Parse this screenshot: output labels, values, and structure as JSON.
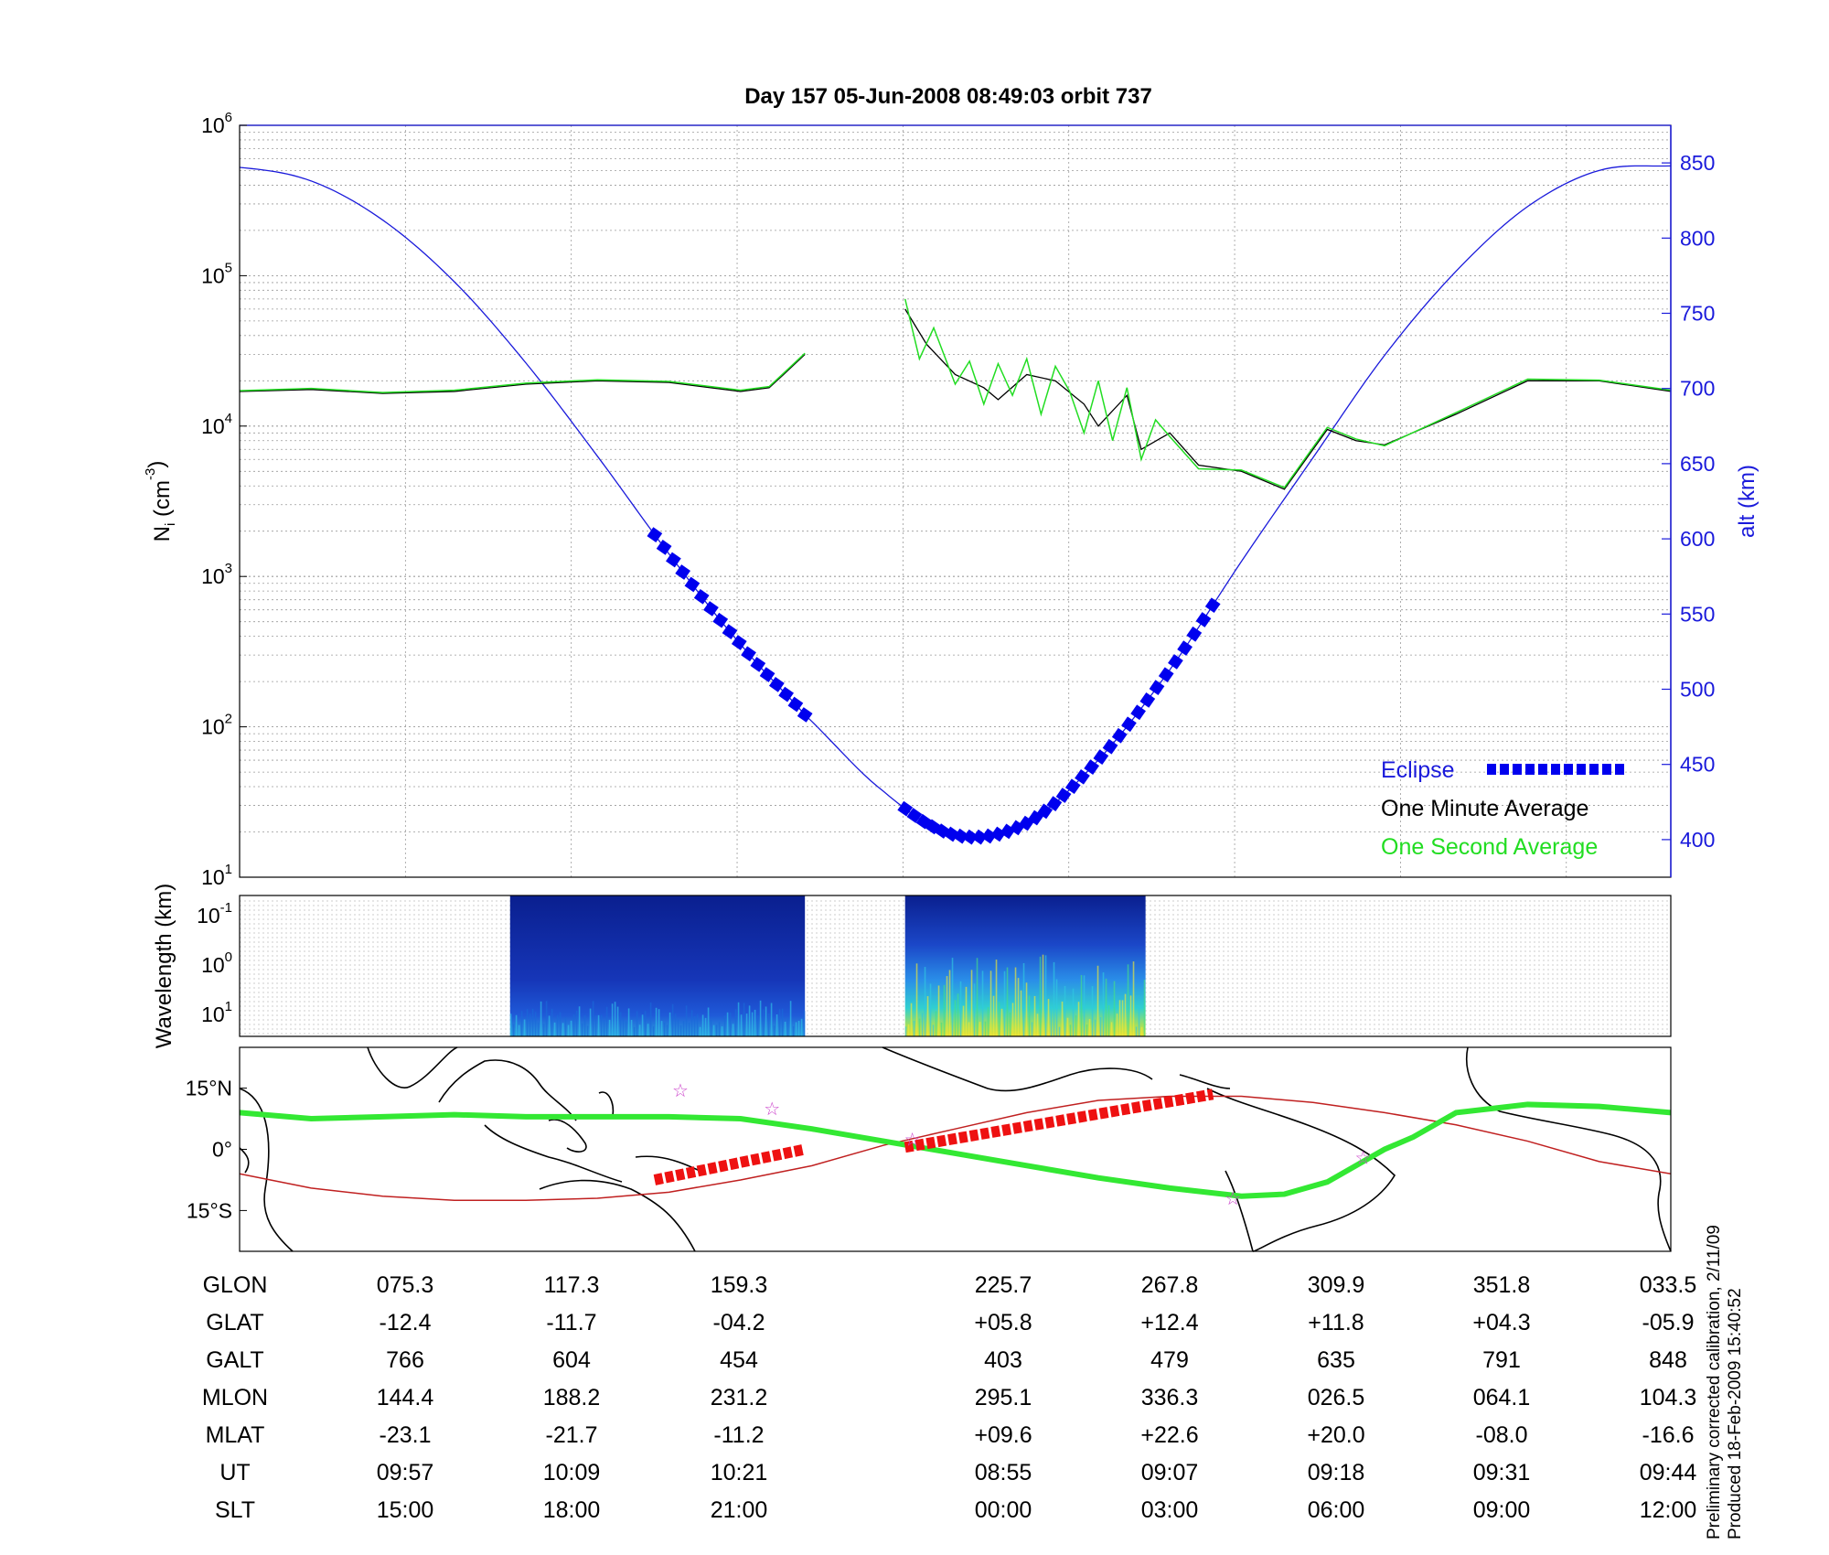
{
  "title": "Day 157  05-Jun-2008 08:49:03   orbit 737",
  "colors": {
    "altitude": "#1a1adb",
    "one_minute": "#000000",
    "one_second": "#22dd22",
    "eclipse": "#0000ee",
    "track": "#33e833",
    "magnetic_equator": "#c02020",
    "eclipse_track": "#ee1111",
    "stars": "#cc44cc"
  },
  "chart_data": [
    {
      "type": "line",
      "panel": "density",
      "ylabel_left": "N_i (cm^-3)",
      "ylabel_right": "alt (km)",
      "ylim_left": [
        10,
        1000000
      ],
      "yscale_left": "log",
      "ylim_right": [
        375,
        875
      ],
      "left_ticks": [
        {
          "base": "10",
          "exp": "1"
        },
        {
          "base": "10",
          "exp": "2"
        },
        {
          "base": "10",
          "exp": "3"
        },
        {
          "base": "10",
          "exp": "4"
        },
        {
          "base": "10",
          "exp": "5"
        },
        {
          "base": "10",
          "exp": "6"
        }
      ],
      "right_ticks": [
        "400",
        "450",
        "500",
        "550",
        "600",
        "650",
        "700",
        "750",
        "800",
        "850"
      ],
      "legend": {
        "placement": "bottom-right",
        "eclipse": "Eclipse",
        "one_minute": "One Minute Average",
        "one_second": "One Second Average"
      },
      "x_unit": "fraction of orbit window",
      "altitude": {
        "x": [
          0,
          0.05,
          0.1,
          0.15,
          0.2,
          0.25,
          0.3,
          0.35,
          0.395,
          0.45,
          0.5,
          0.55,
          0.6,
          0.65,
          0.7,
          0.75,
          0.8,
          0.85,
          0.9,
          0.95,
          1.0
        ],
        "y": [
          847,
          838,
          812,
          771,
          717,
          655,
          590,
          530,
          483,
          432,
          403,
          411,
          453,
          513,
          585,
          654,
          722,
          778,
          821,
          845,
          848
        ]
      },
      "eclipse_segments": [
        {
          "x": [
            0.29,
            0.395
          ]
        },
        {
          "x": [
            0.465,
            0.68
          ]
        }
      ],
      "density_one_minute": [
        {
          "x": [
            0.0,
            0.05,
            0.1,
            0.15,
            0.2,
            0.25,
            0.3,
            0.35,
            0.37,
            0.38,
            0.395
          ],
          "y": [
            17000,
            17500,
            16500,
            17000,
            19000,
            20000,
            19500,
            17000,
            18000,
            22000,
            30000
          ]
        },
        {
          "x": [
            0.465,
            0.48,
            0.5,
            0.52,
            0.53,
            0.55,
            0.57,
            0.59,
            0.6,
            0.62,
            0.63,
            0.65,
            0.67,
            0.7,
            0.73,
            0.76,
            0.78,
            0.8,
            0.85,
            0.9,
            0.95,
            1.0
          ],
          "y": [
            60000,
            35000,
            22000,
            18000,
            15000,
            22000,
            20000,
            14000,
            10000,
            16000,
            7000,
            9000,
            5500,
            5000,
            3800,
            9500,
            8000,
            7500,
            12000,
            20000,
            20000,
            17000
          ]
        }
      ],
      "density_one_second": [
        {
          "x": [
            0.0,
            0.05,
            0.1,
            0.15,
            0.2,
            0.25,
            0.3,
            0.35,
            0.37,
            0.38,
            0.395
          ],
          "y": [
            17200,
            17800,
            16700,
            17300,
            19300,
            20300,
            19800,
            17300,
            18300,
            22400,
            30500
          ]
        },
        {
          "x": [
            0.465,
            0.475,
            0.485,
            0.5,
            0.51,
            0.52,
            0.53,
            0.54,
            0.55,
            0.56,
            0.57,
            0.58,
            0.59,
            0.6,
            0.61,
            0.62,
            0.63,
            0.64,
            0.65,
            0.67,
            0.7,
            0.73,
            0.76,
            0.78,
            0.8,
            0.85,
            0.9,
            0.95,
            1.0
          ],
          "y": [
            70000,
            28000,
            45000,
            19000,
            27000,
            14000,
            26000,
            16000,
            28000,
            12000,
            25000,
            17000,
            9000,
            20000,
            8000,
            18000,
            6000,
            11000,
            8500,
            5200,
            5100,
            3900,
            9800,
            8200,
            7400,
            12300,
            20500,
            20200,
            17300
          ]
        }
      ]
    },
    {
      "type": "heatmap",
      "panel": "spectrogram",
      "ylabel": "Wavelength (km)",
      "y_ticks": [
        {
          "base": "10",
          "exp": "-1"
        },
        {
          "base": "10",
          "exp": "0"
        },
        {
          "base": "10",
          "exp": "1"
        }
      ],
      "active_intervals": [
        {
          "x": [
            0.189,
            0.395
          ],
          "intensity": "low"
        },
        {
          "x": [
            0.465,
            0.633
          ],
          "intensity": "high"
        }
      ]
    },
    {
      "type": "line",
      "panel": "map",
      "y_ticks": [
        "15°N",
        "0°",
        "15°S"
      ],
      "ylim": [
        -25,
        25
      ],
      "track_latitude": {
        "x": [
          0,
          0.05,
          0.1,
          0.15,
          0.2,
          0.25,
          0.3,
          0.35,
          0.4,
          0.45,
          0.5,
          0.55,
          0.6,
          0.65,
          0.7,
          0.73,
          0.76,
          0.8,
          0.82,
          0.85,
          0.9,
          0.95,
          1.0
        ],
        "y": [
          9,
          7.5,
          8,
          8.5,
          8,
          8,
          8,
          7.5,
          5,
          2,
          -1,
          -4,
          -7,
          -9.5,
          -11.5,
          -11,
          -8,
          0,
          3,
          9,
          11,
          10.5,
          9
        ]
      },
      "magnetic_equator": {
        "x": [
          0,
          0.05,
          0.1,
          0.15,
          0.2,
          0.25,
          0.3,
          0.35,
          0.4,
          0.45,
          0.5,
          0.55,
          0.6,
          0.65,
          0.7,
          0.75,
          0.8,
          0.85,
          0.9,
          0.95,
          1.0
        ],
        "y": [
          -6,
          -9.5,
          -11.5,
          -12.5,
          -12.5,
          -12,
          -10.5,
          -7.5,
          -4,
          1,
          5,
          9,
          12,
          13,
          13,
          11.5,
          9,
          6,
          2,
          -3,
          -6
        ]
      },
      "eclipse_track": [
        {
          "x": [
            0.29,
            0.395
          ],
          "y": [
            -7.5,
            0
          ]
        },
        {
          "x": [
            0.465,
            0.68
          ],
          "y": [
            0.5,
            13.5
          ]
        }
      ],
      "stars": [
        {
          "x": 0.308,
          "y": 14.5
        },
        {
          "x": 0.372,
          "y": 10
        },
        {
          "x": 0.47,
          "y": 2.5
        },
        {
          "x": 0.694,
          "y": -12
        },
        {
          "x": 0.785,
          "y": -2
        }
      ]
    },
    {
      "type": "table",
      "panel": "ephemeris",
      "rows": [
        {
          "label": "GLON",
          "values": [
            "075.3",
            "117.3",
            "159.3",
            "225.7",
            "267.8",
            "309.9",
            "351.8",
            "033.5"
          ]
        },
        {
          "label": "GLAT",
          "values": [
            "-12.4",
            "-11.7",
            "-04.2",
            "+05.8",
            "+12.4",
            "+11.8",
            "+04.3",
            "-05.9"
          ]
        },
        {
          "label": "GALT",
          "values": [
            "766",
            "604",
            "454",
            "403",
            "479",
            "635",
            "791",
            "848"
          ]
        },
        {
          "label": "MLON",
          "values": [
            "144.4",
            "188.2",
            "231.2",
            "295.1",
            "336.3",
            "026.5",
            "064.1",
            "104.3"
          ]
        },
        {
          "label": "MLAT",
          "values": [
            "-23.1",
            "-21.7",
            "-11.2",
            "+09.6",
            "+22.6",
            "+20.0",
            "-08.0",
            "-16.6"
          ]
        },
        {
          "label": "UT",
          "values": [
            "09:57",
            "10:09",
            "10:21",
            "08:55",
            "09:07",
            "09:18",
            "09:31",
            "09:44"
          ]
        },
        {
          "label": "SLT",
          "values": [
            "15:00",
            "18:00",
            "21:00",
            "00:00",
            "03:00",
            "06:00",
            "09:00",
            "12:00"
          ]
        }
      ]
    }
  ],
  "footnote": {
    "line1": "Preliminary corrected calibration, 2/11/09",
    "line2": "Produced 18-Feb-2009 15:40:52"
  }
}
